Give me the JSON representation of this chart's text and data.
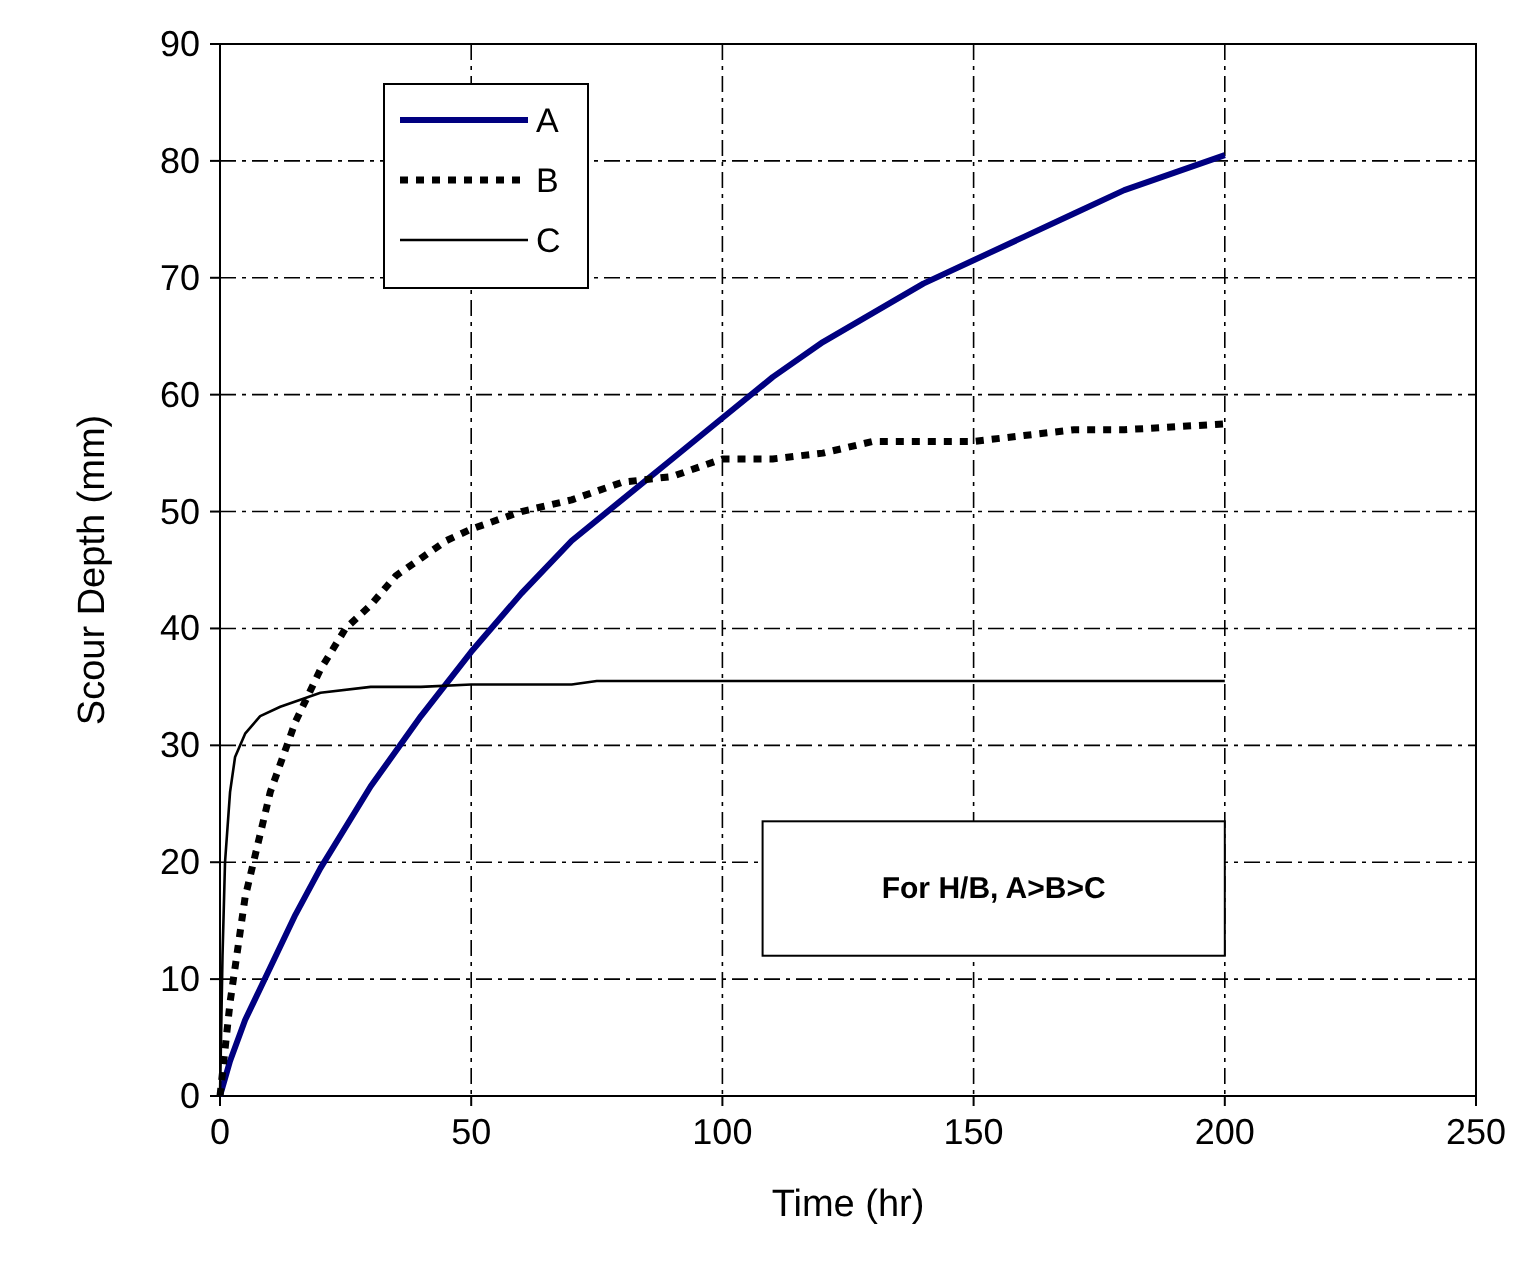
{
  "chart_data": {
    "type": "line",
    "xlabel": "Time (hr)",
    "ylabel": "Scour Depth (mm)",
    "xlim": [
      0,
      250
    ],
    "xticks": [
      0,
      50,
      100,
      150,
      200,
      250
    ],
    "ylim": [
      0,
      90
    ],
    "yticks": [
      0,
      10,
      20,
      30,
      40,
      50,
      60,
      70,
      80,
      90
    ],
    "grid": true,
    "legend": "top left",
    "annotations": [
      "For H/B, A>B>C"
    ],
    "series": [
      {
        "name": "A",
        "color": "#000080",
        "line_style": "solid",
        "x": [
          0,
          2,
          5,
          10,
          15,
          20,
          30,
          40,
          50,
          60,
          70,
          80,
          90,
          100,
          110,
          120,
          130,
          140,
          150,
          160,
          170,
          180,
          190,
          200
        ],
        "values": [
          0,
          3,
          6.5,
          11,
          15.5,
          19.5,
          26.5,
          32.5,
          38,
          43,
          47.5,
          51,
          54.5,
          58,
          61.5,
          64.5,
          67,
          69.5,
          71.5,
          73.5,
          75.5,
          77.5,
          79,
          80.5
        ]
      },
      {
        "name": "B",
        "color": "#000000",
        "line_style": "dotted",
        "x": [
          0,
          2,
          5,
          10,
          15,
          20,
          25,
          30,
          35,
          40,
          45,
          50,
          60,
          70,
          80,
          90,
          100,
          110,
          120,
          130,
          140,
          150,
          160,
          170,
          180,
          200
        ],
        "values": [
          0,
          8,
          17,
          26,
          32,
          36.5,
          40,
          42,
          44.5,
          46,
          47.5,
          48.5,
          50,
          51,
          52.5,
          53,
          54.5,
          54.5,
          55,
          56,
          56,
          56,
          56.5,
          57,
          57,
          57.5
        ]
      },
      {
        "name": "C",
        "color": "#000000",
        "line_style": "solid",
        "x": [
          0,
          0.5,
          1,
          2,
          3,
          5,
          8,
          12,
          20,
          30,
          40,
          50,
          70,
          75,
          200
        ],
        "values": [
          0,
          12,
          20,
          26,
          29,
          31,
          32.5,
          33.3,
          34.5,
          35,
          35,
          35.2,
          35.2,
          35.5,
          35.5
        ]
      }
    ]
  }
}
